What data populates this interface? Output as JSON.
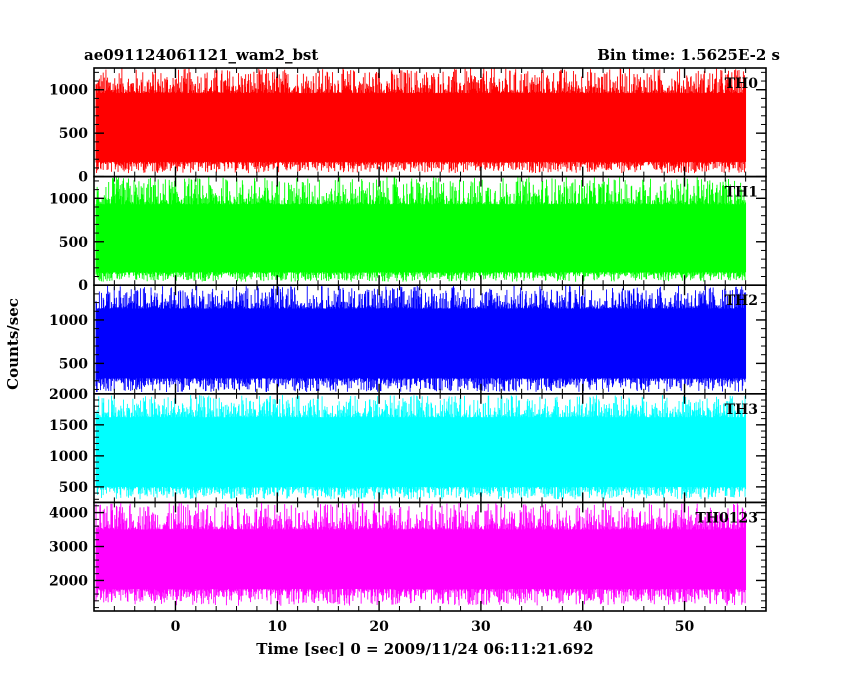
{
  "chart_data": {
    "type": "line",
    "title_left": "ae091124061121_wam2_bst",
    "title_right": "Bin time: 1.5625E-2 s",
    "xlabel": "Time [sec] 0 = 2009/11/24 06:11:21.692",
    "ylabel": "Counts/sec",
    "xlim": [
      -8,
      58
    ],
    "x_ticks": [
      0,
      10,
      20,
      30,
      40,
      50
    ],
    "data_range": [
      -7.8,
      56
    ],
    "grid": false,
    "panels": [
      {
        "name": "TH0",
        "color": "#ff0000",
        "ylim": [
          0,
          1250
        ],
        "y_ticks": [
          0,
          500,
          1000
        ],
        "y_tick_labels": [
          "0",
          "500",
          "1000"
        ],
        "signal_range": [
          40,
          1250
        ],
        "typical_band": [
          170,
          960
        ]
      },
      {
        "name": "TH1",
        "color": "#00ff00",
        "ylim": [
          0,
          1250
        ],
        "y_ticks": [
          0,
          500,
          1000
        ],
        "y_tick_labels": [
          "0",
          "500",
          "1000"
        ],
        "signal_range": [
          40,
          1250
        ],
        "typical_band": [
          150,
          930
        ]
      },
      {
        "name": "TH2",
        "color": "#0000ff",
        "ylim": [
          150,
          1400
        ],
        "y_ticks": [
          500,
          1000
        ],
        "y_tick_labels": [
          "500",
          "1000"
        ],
        "signal_range": [
          170,
          1400
        ],
        "typical_band": [
          330,
          1130
        ]
      },
      {
        "name": "TH3",
        "color": "#00ffff",
        "ylim": [
          250,
          2000
        ],
        "y_ticks": [
          500,
          1000,
          1500,
          2000
        ],
        "y_tick_labels": [
          "500",
          "1000",
          "1500",
          "2000"
        ],
        "signal_range": [
          300,
          1980
        ],
        "typical_band": [
          500,
          1620
        ]
      },
      {
        "name": "TH0123",
        "color": "#ff00ff",
        "ylim": [
          1100,
          4300
        ],
        "y_ticks": [
          2000,
          3000,
          4000
        ],
        "y_tick_labels": [
          "2000",
          "3000",
          "4000"
        ],
        "signal_range": [
          1250,
          4300
        ],
        "typical_band": [
          1750,
          3500
        ]
      }
    ]
  }
}
